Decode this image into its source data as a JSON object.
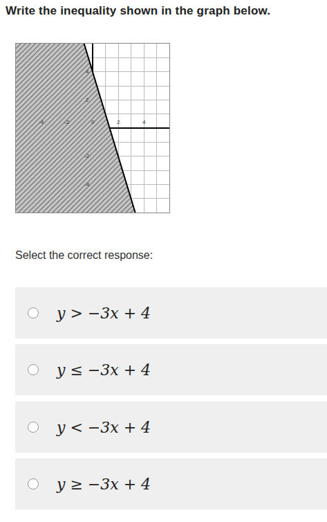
{
  "header": {
    "title": "Write the inequality shown in the graph below."
  },
  "chart_data": {
    "type": "inequality",
    "xlim": [
      -6,
      6
    ],
    "ylim": [
      -6,
      6
    ],
    "xticks": [
      -4,
      -2,
      0,
      2,
      4
    ],
    "yticks": [
      -4,
      -2,
      2,
      4
    ],
    "grid": true,
    "series": [
      {
        "type": "area",
        "color": "#9a9a9a",
        "marker": "hatch",
        "x": [
          -6,
          -0.67,
          3.33,
          -6
        ],
        "y": [
          6,
          6,
          -6,
          -6
        ]
      },
      {
        "type": "line",
        "color": "#000000",
        "line_style": "solid",
        "x": [
          -0.67,
          3.33
        ],
        "y": [
          6,
          -6
        ]
      }
    ]
  },
  "prompt": "Select the correct response:",
  "options": [
    "y > −3x + 4",
    "y ≤ −3x + 4",
    "y < −3x + 4",
    "y ≥ −3x + 4"
  ]
}
